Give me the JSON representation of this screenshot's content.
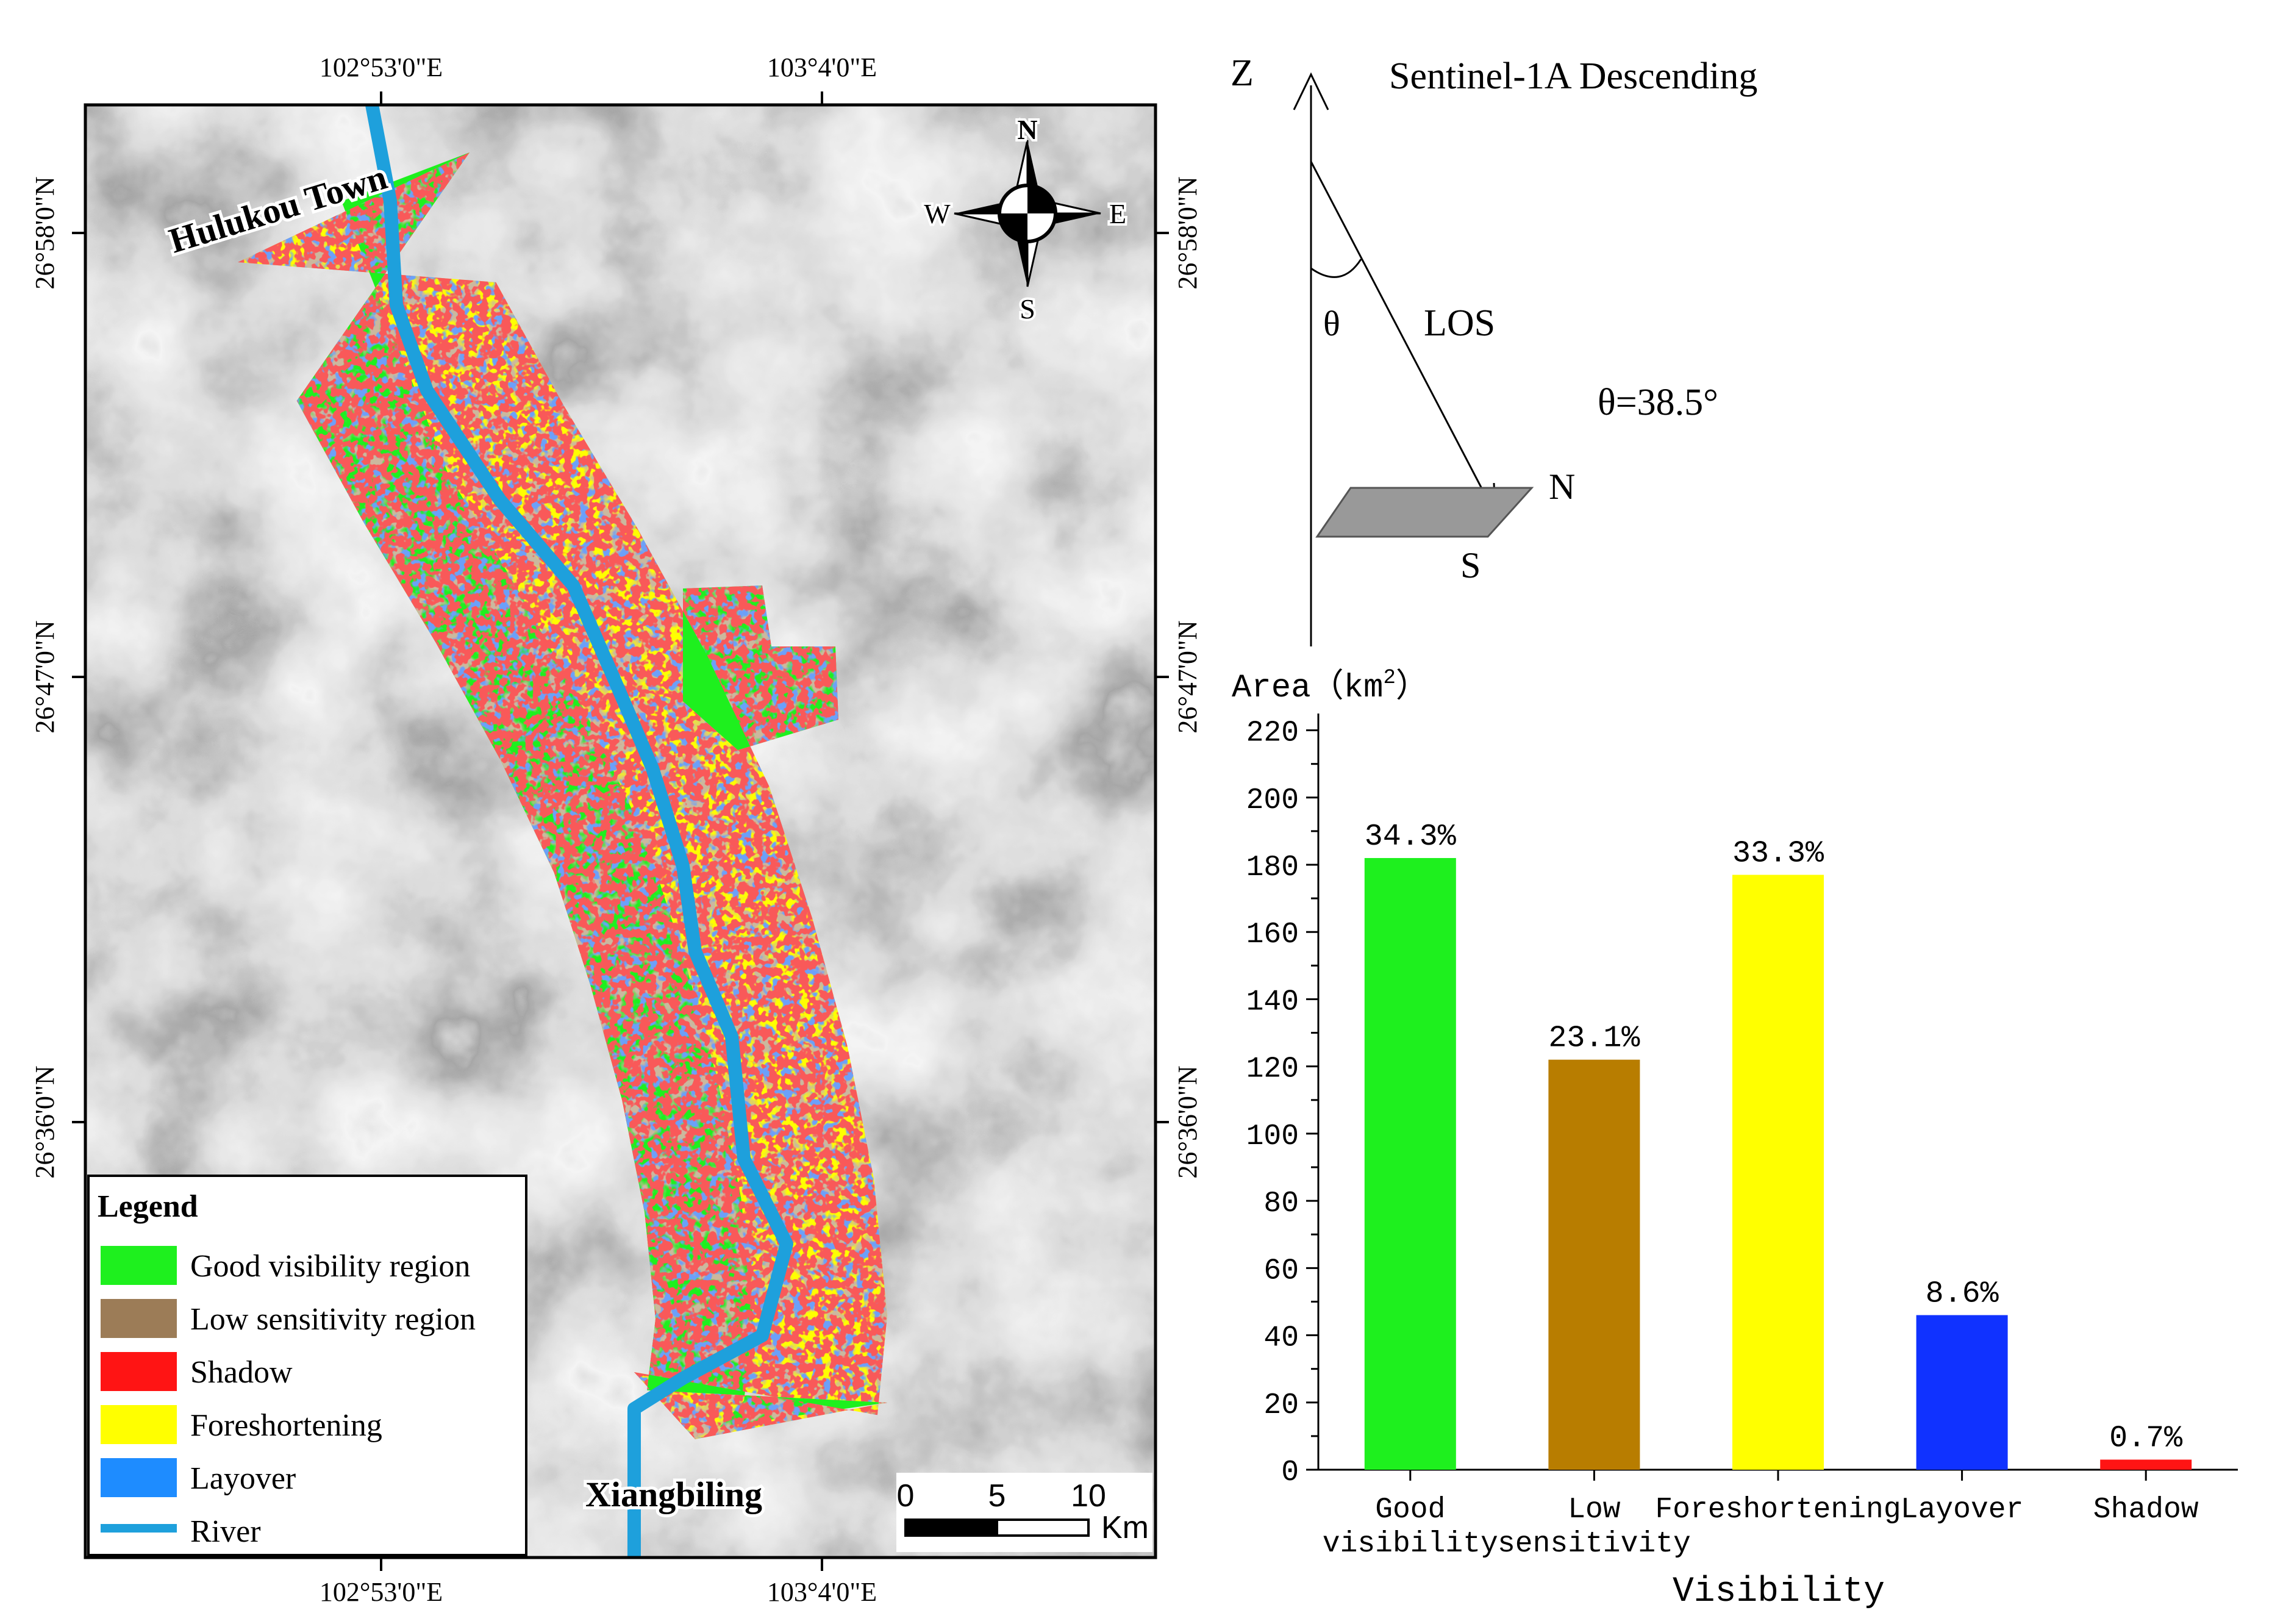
{
  "map": {
    "top_lon_labels": [
      "102°53'0\"E",
      "103°4'0\"E"
    ],
    "bottom_lon_labels": [
      "102°53'0\"E",
      "103°4'0\"E"
    ],
    "left_lat_labels": [
      "26°58'0\"N",
      "26°47'0\"N",
      "26°36'0\"N"
    ],
    "right_lat_labels": [
      "26°58'0\"N",
      "26°47'0\"N",
      "26°36'0\"N"
    ],
    "place_top": "Hulukou Town",
    "place_bottom": "Xiangbiling",
    "compass": {
      "n": "N",
      "s": "S",
      "e": "E",
      "w": "W"
    },
    "scale": {
      "ticks": [
        "0",
        "5",
        "10"
      ],
      "unit": "Km"
    },
    "legend": {
      "title": "Legend",
      "items": [
        {
          "label": "Good visibility region",
          "color": "#1ef01e"
        },
        {
          "label": "Low sensitivity region",
          "color": "#9c7c57"
        },
        {
          "label": "Shadow",
          "color": "#ff1414"
        },
        {
          "label": "Foreshortening",
          "color": "#ffff00"
        },
        {
          "label": "Layover",
          "color": "#1e8cff"
        },
        {
          "label": "River",
          "color": "#1ea0dc",
          "line": true
        }
      ]
    }
  },
  "geometry": {
    "title": "Sentinel-1A  Descending",
    "z_label": "Z",
    "theta_symbol": "θ",
    "los_label": "LOS",
    "angle_text": "θ=38.5°",
    "n_label": "N",
    "s_label": "S"
  },
  "chart_data": {
    "type": "bar",
    "ylabel_text": "Area（km",
    "ylabel_sup": "2",
    "ylabel_close": "）",
    "xlabel": "Visibility",
    "ylim": [
      0,
      225
    ],
    "yticks": [
      0,
      20,
      40,
      60,
      80,
      100,
      120,
      140,
      160,
      180,
      200,
      220
    ],
    "categories": [
      [
        "Good",
        "visibility"
      ],
      [
        "Low",
        "sensitivity"
      ],
      [
        "Foreshortening"
      ],
      [
        "Layover"
      ],
      [
        "Shadow"
      ]
    ],
    "values": [
      182,
      122,
      177,
      46,
      3
    ],
    "percent_labels": [
      "34.3%",
      "23.1%",
      "33.3%",
      "8.6%",
      "0.7%"
    ],
    "colors": [
      "#1ef01e",
      "#b87d00",
      "#ffff00",
      "#1032ff",
      "#ff1414"
    ]
  }
}
